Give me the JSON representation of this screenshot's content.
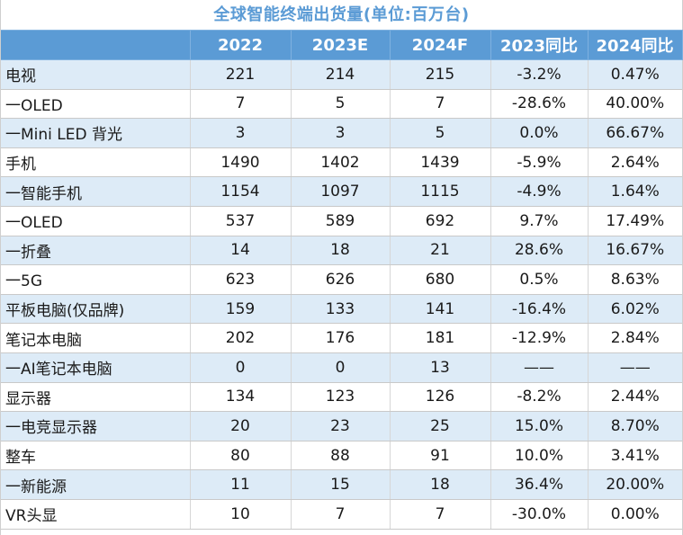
{
  "title": "全球智能终端出货量(单位:百万台)",
  "colors": {
    "header_bg": "#5b9bd5",
    "title_text": "#5b9bd5",
    "band_row": "#ddebf7"
  },
  "table": {
    "headers": [
      "",
      "2022",
      "2023E",
      "2024F",
      "2023同比",
      "2024同比"
    ],
    "rows": [
      [
        "电视",
        "221",
        "214",
        "215",
        "-3.2%",
        "0.47%"
      ],
      [
        "一OLED",
        "7",
        "5",
        "7",
        "-28.6%",
        "40.00%"
      ],
      [
        "一Mini LED 背光",
        "3",
        "3",
        "5",
        "0.0%",
        "66.67%"
      ],
      [
        "手机",
        "1490",
        "1402",
        "1439",
        "-5.9%",
        "2.64%"
      ],
      [
        "一智能手机",
        "1154",
        "1097",
        "1115",
        "-4.9%",
        "1.64%"
      ],
      [
        "一OLED",
        "537",
        "589",
        "692",
        "9.7%",
        "17.49%"
      ],
      [
        "一折叠",
        "14",
        "18",
        "21",
        "28.6%",
        "16.67%"
      ],
      [
        "一5G",
        "623",
        "626",
        "680",
        "0.5%",
        "8.63%"
      ],
      [
        "平板电脑(仅品牌)",
        "159",
        "133",
        "141",
        "-16.4%",
        "6.02%"
      ],
      [
        "笔记本电脑",
        "202",
        "176",
        "181",
        "-12.9%",
        "2.84%"
      ],
      [
        "一AI笔记本电脑",
        "0",
        "0",
        "13",
        "——",
        "——"
      ],
      [
        "显示器",
        "134",
        "123",
        "126",
        "-8.2%",
        "2.44%"
      ],
      [
        "一电竞显示器",
        "20",
        "23",
        "25",
        "15.0%",
        "8.70%"
      ],
      [
        "整车",
        "80",
        "88",
        "91",
        "10.0%",
        "3.41%"
      ],
      [
        "一新能源",
        "11",
        "15",
        "18",
        "36.4%",
        "20.00%"
      ],
      [
        "VR头显",
        "10",
        "7",
        "7",
        "-30.0%",
        "0.00%"
      ]
    ]
  }
}
